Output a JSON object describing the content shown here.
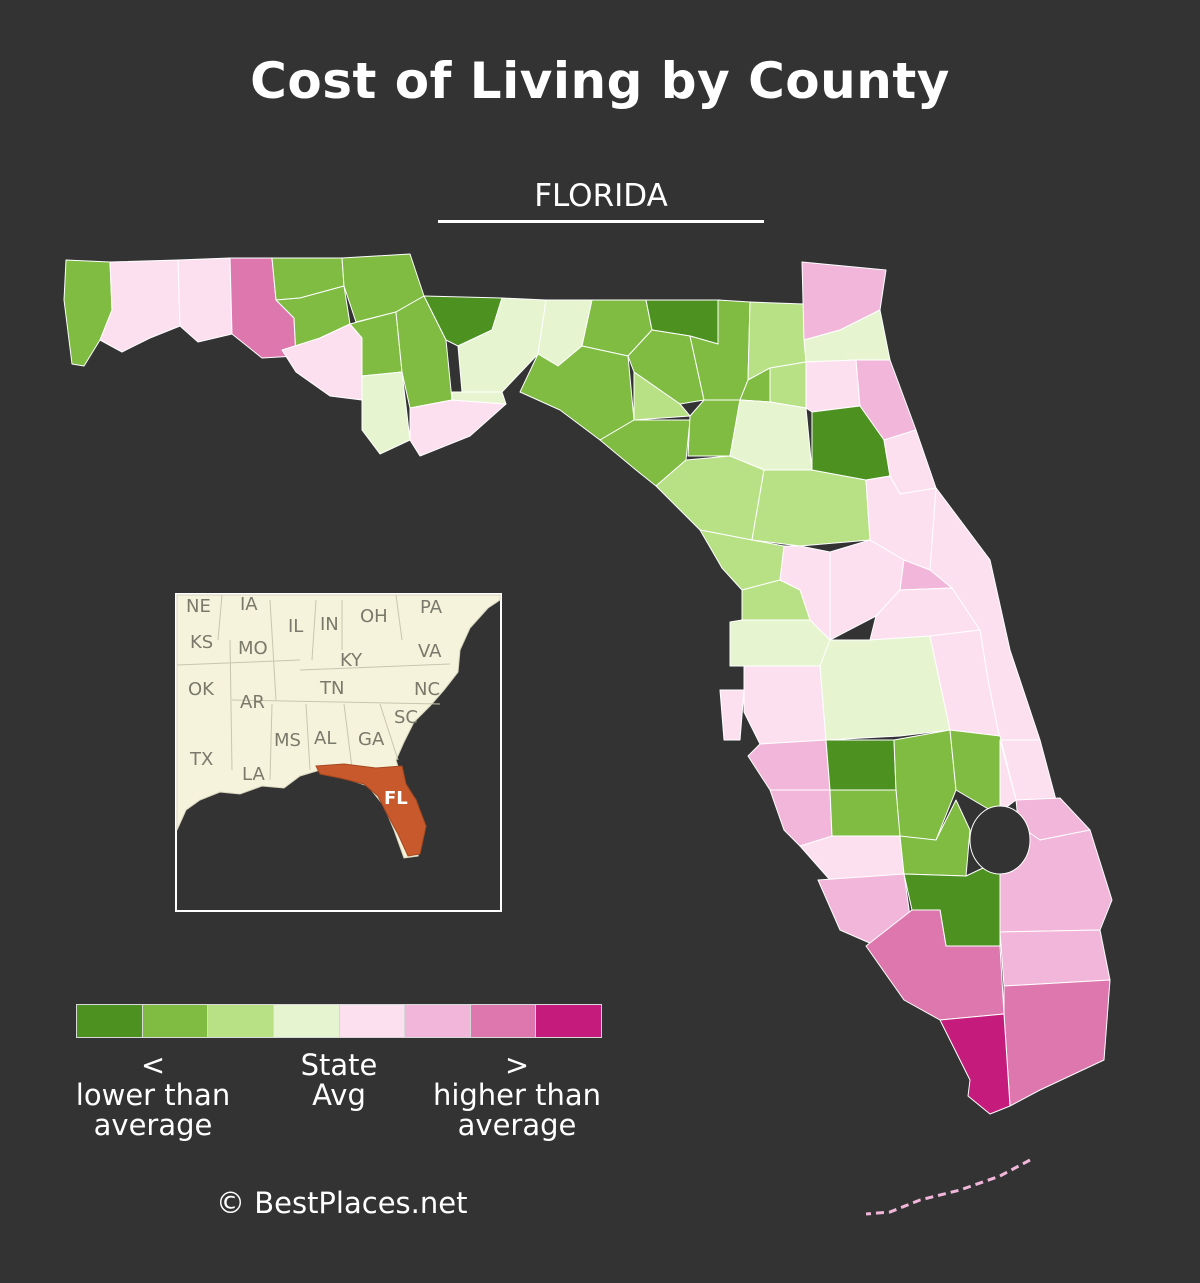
{
  "title": "Cost of Living by County",
  "state_name": "FLORIDA",
  "legend": {
    "colors": [
      "#4d9221",
      "#7fbc41",
      "#b8e186",
      "#e6f5d0",
      "#fde0ef",
      "#f1b6da",
      "#de77ae",
      "#c51b7d"
    ],
    "low_label": "<\nlower than\naverage",
    "mid_label": "State\nAvg",
    "high_label": ">\nhigher than\naverage"
  },
  "inset": {
    "states": [
      "NE",
      "IA",
      "IL",
      "IN",
      "OH",
      "PA",
      "KS",
      "MO",
      "KY",
      "VA",
      "OK",
      "AR",
      "TN",
      "NC",
      "SC",
      "MS",
      "AL",
      "GA",
      "TX",
      "LA"
    ],
    "highlight": "FL",
    "highlight_color": "#c8592c",
    "land_color": "#f5f3dc"
  },
  "credit": "© BestPlaces.net"
}
